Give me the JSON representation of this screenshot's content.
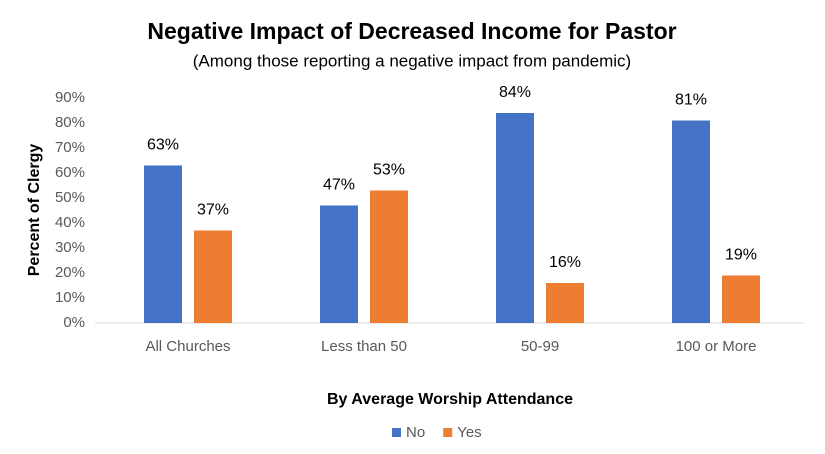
{
  "chart_data": {
    "type": "bar",
    "title": "Negative Impact of Decreased Income for Pastor",
    "subtitle": "(Among those reporting a negative impact from pandemic)",
    "x_label": "By Average Worship Attendance",
    "y_label": "Percent of Clergy",
    "categories": [
      "All Churches",
      "Less than 50",
      "50-99",
      "100 or More"
    ],
    "series": [
      {
        "name": "No",
        "color": "#4472c4",
        "values": [
          63,
          47,
          84,
          81
        ],
        "value_labels": [
          "63%",
          "47%",
          "84%",
          "81%"
        ]
      },
      {
        "name": "Yes",
        "color": "#ed7d31",
        "values": [
          37,
          53,
          16,
          19
        ],
        "value_labels": [
          "37%",
          "53%",
          "16%",
          "19%"
        ]
      }
    ],
    "ylim": [
      0,
      90
    ],
    "yticks": [
      {
        "value": 0,
        "label": "0%"
      },
      {
        "value": 10,
        "label": "10%"
      },
      {
        "value": 20,
        "label": "20%"
      },
      {
        "value": 30,
        "label": "30%"
      },
      {
        "value": 40,
        "label": "40%"
      },
      {
        "value": 50,
        "label": "50%"
      },
      {
        "value": 60,
        "label": "60%"
      },
      {
        "value": 70,
        "label": "70%"
      },
      {
        "value": 80,
        "label": "80%"
      },
      {
        "value": 90,
        "label": "90%"
      }
    ],
    "legend": "bottom"
  }
}
